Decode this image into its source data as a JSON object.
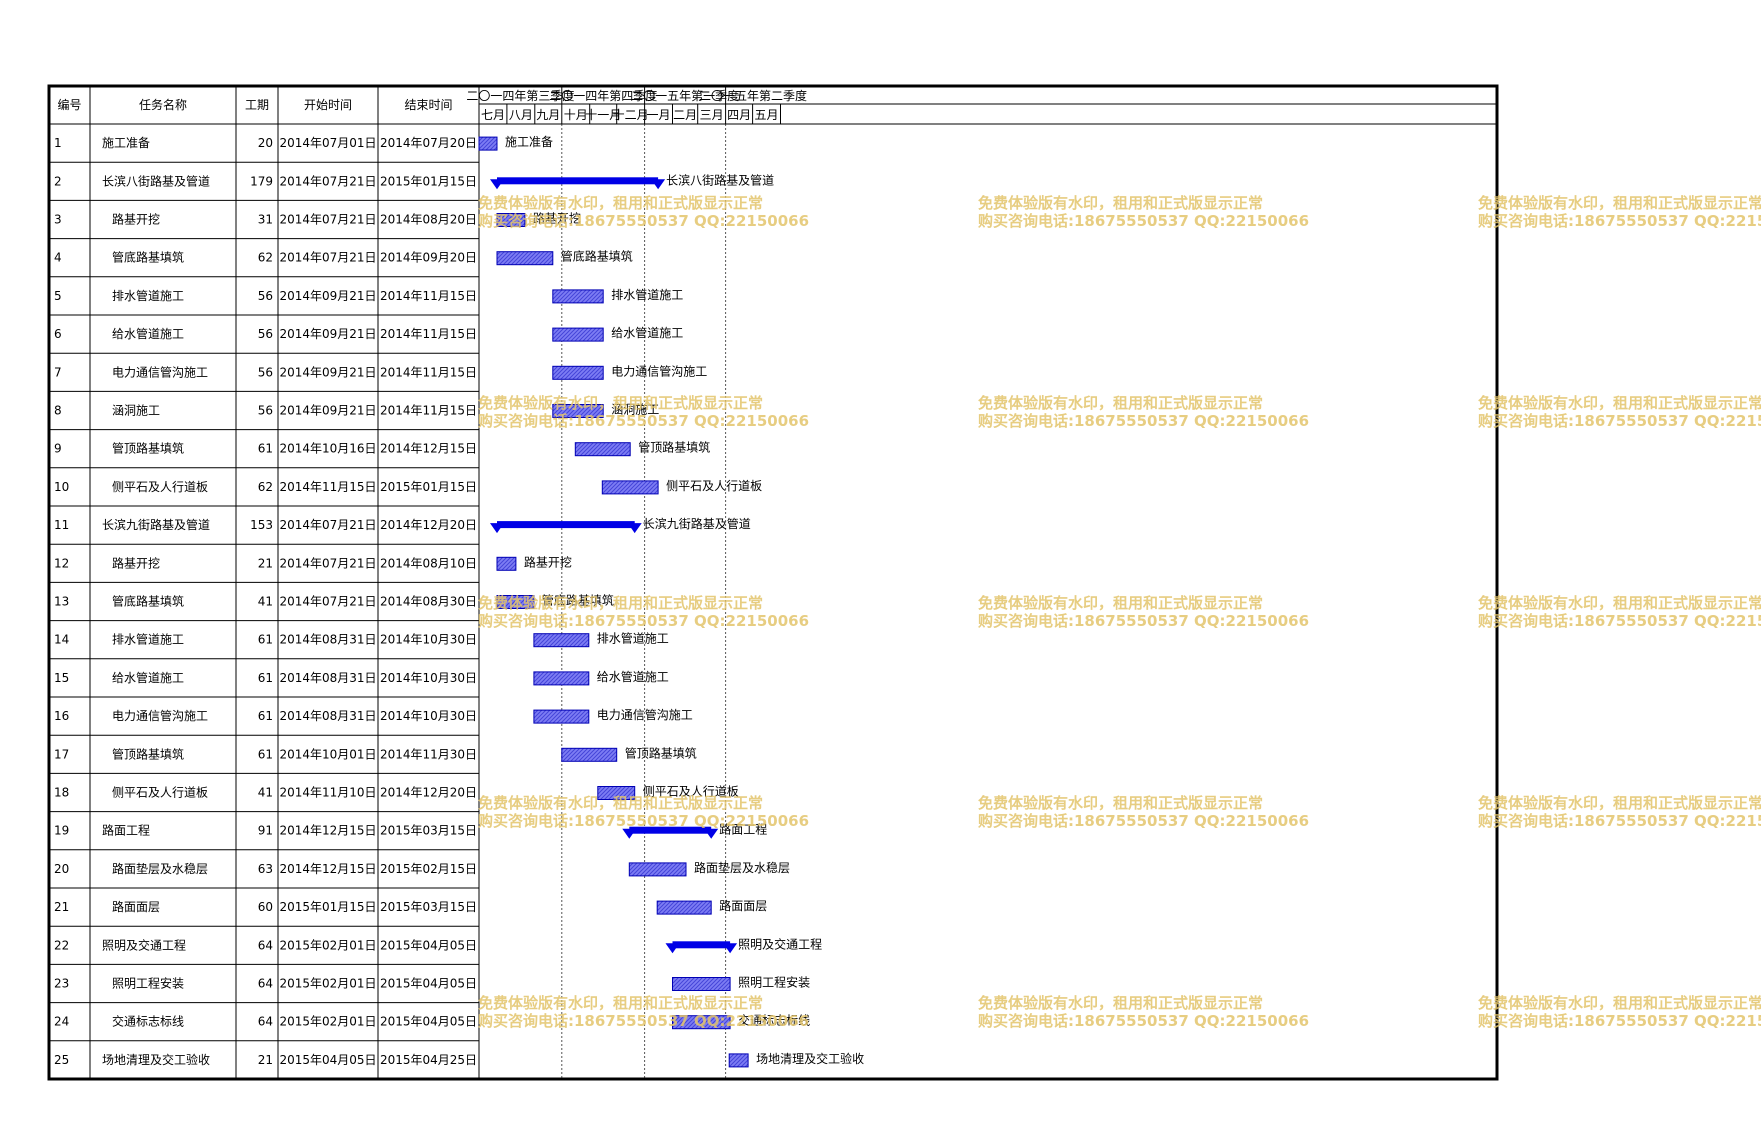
{
  "chart_data": {
    "type": "gantt",
    "columns": [
      "编号",
      "任务名称",
      "工期",
      "开始时间",
      "结束时间"
    ],
    "quarters": [
      {
        "label": "二〇一四年第三季度",
        "start": "2014-07-01",
        "end": "2014-10-01"
      },
      {
        "label": "二〇一四年第四季度",
        "start": "2014-10-01",
        "end": "2015-01-01"
      },
      {
        "label": "二〇一五年第一季度",
        "start": "2015-01-01",
        "end": "2015-04-01"
      },
      {
        "label": "二〇一五年第二季度",
        "start": "2015-04-01",
        "end": "2015-06-01"
      }
    ],
    "months": [
      {
        "label": "七月",
        "start": "2014-07-01",
        "end": "2014-08-01"
      },
      {
        "label": "八月",
        "start": "2014-08-01",
        "end": "2014-09-01"
      },
      {
        "label": "九月",
        "start": "2014-09-01",
        "end": "2014-10-01"
      },
      {
        "label": "十月",
        "start": "2014-10-01",
        "end": "2014-11-01"
      },
      {
        "label": "十一月",
        "start": "2014-11-01",
        "end": "2014-12-01"
      },
      {
        "label": "十二月",
        "start": "2014-12-01",
        "end": "2015-01-01"
      },
      {
        "label": "一月",
        "start": "2015-01-01",
        "end": "2015-02-01"
      },
      {
        "label": "二月",
        "start": "2015-02-01",
        "end": "2015-03-01"
      },
      {
        "label": "三月",
        "start": "2015-03-01",
        "end": "2015-04-01"
      },
      {
        "label": "四月",
        "start": "2015-04-01",
        "end": "2015-05-01"
      },
      {
        "label": "五月",
        "start": "2015-05-01",
        "end": "2015-06-01"
      }
    ],
    "tasks": [
      {
        "id": "1",
        "name": "施工准备",
        "duration": "20",
        "start": "2014年07月01日",
        "end": "2014年07月20日",
        "start_date": "2014-07-01",
        "end_date": "2014-07-20",
        "summary": false
      },
      {
        "id": "2",
        "name": "长滨八街路基及管道",
        "duration": "179",
        "start": "2014年07月21日",
        "end": "2015年01月15日",
        "start_date": "2014-07-21",
        "end_date": "2015-01-15",
        "summary": true
      },
      {
        "id": "3",
        "name": "路基开挖",
        "duration": "31",
        "start": "2014年07月21日",
        "end": "2014年08月20日",
        "start_date": "2014-07-21",
        "end_date": "2014-08-20",
        "summary": false
      },
      {
        "id": "4",
        "name": "管底路基填筑",
        "duration": "62",
        "start": "2014年07月21日",
        "end": "2014年09月20日",
        "start_date": "2014-07-21",
        "end_date": "2014-09-20",
        "summary": false
      },
      {
        "id": "5",
        "name": "排水管道施工",
        "duration": "56",
        "start": "2014年09月21日",
        "end": "2014年11月15日",
        "start_date": "2014-09-21",
        "end_date": "2014-11-15",
        "summary": false
      },
      {
        "id": "6",
        "name": "给水管道施工",
        "duration": "56",
        "start": "2014年09月21日",
        "end": "2014年11月15日",
        "start_date": "2014-09-21",
        "end_date": "2014-11-15",
        "summary": false
      },
      {
        "id": "7",
        "name": "电力通信管沟施工",
        "duration": "56",
        "start": "2014年09月21日",
        "end": "2014年11月15日",
        "start_date": "2014-09-21",
        "end_date": "2014-11-15",
        "summary": false
      },
      {
        "id": "8",
        "name": "涵洞施工",
        "duration": "56",
        "start": "2014年09月21日",
        "end": "2014年11月15日",
        "start_date": "2014-09-21",
        "end_date": "2014-11-15",
        "summary": false
      },
      {
        "id": "9",
        "name": "管顶路基填筑",
        "duration": "61",
        "start": "2014年10月16日",
        "end": "2014年12月15日",
        "start_date": "2014-10-16",
        "end_date": "2014-12-15",
        "summary": false
      },
      {
        "id": "10",
        "name": "侧平石及人行道板",
        "duration": "62",
        "start": "2014年11月15日",
        "end": "2015年01月15日",
        "start_date": "2014-11-15",
        "end_date": "2015-01-15",
        "summary": false
      },
      {
        "id": "11",
        "name": "长滨九街路基及管道",
        "duration": "153",
        "start": "2014年07月21日",
        "end": "2014年12月20日",
        "start_date": "2014-07-21",
        "end_date": "2014-12-20",
        "summary": true
      },
      {
        "id": "12",
        "name": "路基开挖",
        "duration": "21",
        "start": "2014年07月21日",
        "end": "2014年08月10日",
        "start_date": "2014-07-21",
        "end_date": "2014-08-10",
        "summary": false
      },
      {
        "id": "13",
        "name": "管底路基填筑",
        "duration": "41",
        "start": "2014年07月21日",
        "end": "2014年08月30日",
        "start_date": "2014-07-21",
        "end_date": "2014-08-30",
        "summary": false
      },
      {
        "id": "14",
        "name": "排水管道施工",
        "duration": "61",
        "start": "2014年08月31日",
        "end": "2014年10月30日",
        "start_date": "2014-08-31",
        "end_date": "2014-10-30",
        "summary": false
      },
      {
        "id": "15",
        "name": "给水管道施工",
        "duration": "61",
        "start": "2014年08月31日",
        "end": "2014年10月30日",
        "start_date": "2014-08-31",
        "end_date": "2014-10-30",
        "summary": false
      },
      {
        "id": "16",
        "name": "电力通信管沟施工",
        "duration": "61",
        "start": "2014年08月31日",
        "end": "2014年10月30日",
        "start_date": "2014-08-31",
        "end_date": "2014-10-30",
        "summary": false
      },
      {
        "id": "17",
        "name": "管顶路基填筑",
        "duration": "61",
        "start": "2014年10月01日",
        "end": "2014年11月30日",
        "start_date": "2014-10-01",
        "end_date": "2014-11-30",
        "summary": false
      },
      {
        "id": "18",
        "name": "侧平石及人行道板",
        "duration": "41",
        "start": "2014年11月10日",
        "end": "2014年12月20日",
        "start_date": "2014-11-10",
        "end_date": "2014-12-20",
        "summary": false
      },
      {
        "id": "19",
        "name": "路面工程",
        "duration": "91",
        "start": "2014年12月15日",
        "end": "2015年03月15日",
        "start_date": "2014-12-15",
        "end_date": "2015-03-15",
        "summary": true
      },
      {
        "id": "20",
        "name": "路面垫层及水稳层",
        "duration": "63",
        "start": "2014年12月15日",
        "end": "2015年02月15日",
        "start_date": "2014-12-15",
        "end_date": "2015-02-15",
        "summary": false
      },
      {
        "id": "21",
        "name": "路面面层",
        "duration": "60",
        "start": "2015年01月15日",
        "end": "2015年03月15日",
        "start_date": "2015-01-15",
        "end_date": "2015-03-15",
        "summary": false
      },
      {
        "id": "22",
        "name": "照明及交通工程",
        "duration": "64",
        "start": "2015年02月01日",
        "end": "2015年04月05日",
        "start_date": "2015-02-01",
        "end_date": "2015-04-05",
        "summary": true
      },
      {
        "id": "23",
        "name": "照明工程安装",
        "duration": "64",
        "start": "2015年02月01日",
        "end": "2015年04月05日",
        "start_date": "2015-02-01",
        "end_date": "2015-04-05",
        "summary": false
      },
      {
        "id": "24",
        "name": "交通标志标线",
        "duration": "64",
        "start": "2015年02月01日",
        "end": "2015年04月05日",
        "start_date": "2015-02-01",
        "end_date": "2015-04-05",
        "summary": false
      },
      {
        "id": "25",
        "name": "场地清理及交工验收",
        "duration": "21",
        "start": "2015年04月05日",
        "end": "2015年04月25日",
        "start_date": "2015-04-05",
        "end_date": "2015-04-25",
        "summary": false
      }
    ]
  },
  "colors": {
    "bar_fill": "#7b7bf2",
    "bar_border": "#0000b4",
    "summary": "#0000e6",
    "watermark": "#e3c46b"
  },
  "watermark": {
    "line1": "免费体验版有水印，租用和正式版显示正常",
    "line2": "购买咨询电话:18675550537 QQ:22150066"
  }
}
